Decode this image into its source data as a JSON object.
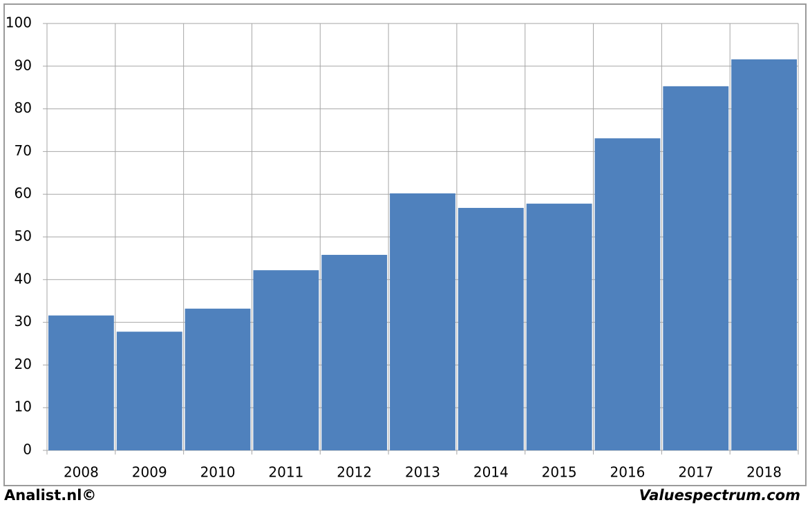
{
  "chart_data": {
    "type": "bar",
    "categories": [
      "2008",
      "2009",
      "2010",
      "2011",
      "2012",
      "2013",
      "2014",
      "2015",
      "2016",
      "2017",
      "2018"
    ],
    "values": [
      31.6,
      27.8,
      33.2,
      42.2,
      45.8,
      60.2,
      56.8,
      57.8,
      73.1,
      85.3,
      91.6
    ],
    "color": "#4f81bd",
    "ylim": [
      0,
      100
    ],
    "yticks": [
      0,
      10,
      20,
      30,
      40,
      50,
      60,
      70,
      80,
      90,
      100
    ],
    "grid": true,
    "annotations": [
      "Analist.nl©",
      "Valuespectrum.com"
    ]
  }
}
